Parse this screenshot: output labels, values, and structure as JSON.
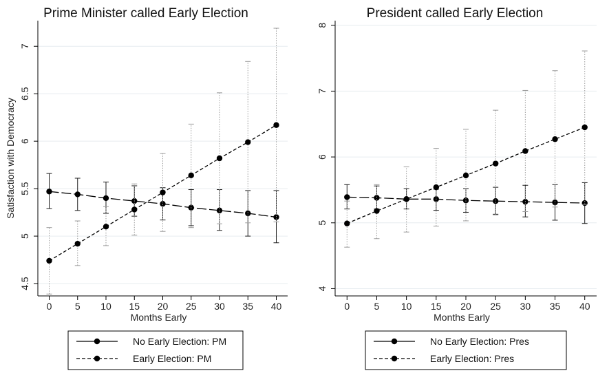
{
  "chart_data": [
    {
      "type": "line",
      "title": "Prime Minister  called Early Election",
      "xlabel": "Months Early",
      "ylabel": "Satisfaction with Democracy",
      "x": [
        0,
        5,
        10,
        15,
        20,
        25,
        30,
        35,
        40
      ],
      "xticks": [
        "0",
        "5",
        "10",
        "15",
        "20",
        "25",
        "30",
        "35",
        "40"
      ],
      "yticks": [
        "4.5",
        "5",
        "5.5",
        "6",
        "6.5",
        "7"
      ],
      "xlim": [
        -2,
        42
      ],
      "ylim": [
        4.37,
        7.27
      ],
      "grid": true,
      "series": [
        {
          "name": "No Early Election: PM",
          "style": "solid",
          "values": [
            5.47,
            5.44,
            5.4,
            5.37,
            5.34,
            5.3,
            5.27,
            5.24,
            5.2
          ],
          "ci_low": [
            5.29,
            5.27,
            5.24,
            5.21,
            5.17,
            5.11,
            5.06,
            5.0,
            4.93
          ],
          "ci_high": [
            5.66,
            5.61,
            5.57,
            5.53,
            5.51,
            5.49,
            5.49,
            5.48,
            5.48
          ]
        },
        {
          "name": "Early Election: PM",
          "style": "dashed",
          "values": [
            4.74,
            4.92,
            5.1,
            5.28,
            5.46,
            5.64,
            5.82,
            5.99,
            6.17
          ],
          "ci_low": [
            4.39,
            4.69,
            4.9,
            5.01,
            5.05,
            5.09,
            5.13,
            5.14,
            5.15
          ],
          "ci_high": [
            5.09,
            5.16,
            5.31,
            5.55,
            5.87,
            6.18,
            6.51,
            6.84,
            7.19
          ]
        }
      ],
      "legend": [
        "No Early Election: PM",
        "Early Election: PM"
      ]
    },
    {
      "type": "line",
      "title": "President  called Early Election",
      "xlabel": "Months Early",
      "ylabel": "",
      "x": [
        0,
        5,
        10,
        15,
        20,
        25,
        30,
        35,
        40
      ],
      "xticks": [
        "0",
        "5",
        "10",
        "15",
        "20",
        "25",
        "30",
        "35",
        "40"
      ],
      "yticks": [
        "4",
        "5",
        "6",
        "7",
        "8"
      ],
      "xlim": [
        -2,
        42
      ],
      "ylim": [
        3.89,
        8.07
      ],
      "grid": true,
      "series": [
        {
          "name": "No Early Election: Pres",
          "style": "solid",
          "values": [
            5.39,
            5.38,
            5.36,
            5.36,
            5.34,
            5.33,
            5.32,
            5.31,
            5.3
          ],
          "ci_low": [
            5.21,
            5.21,
            5.21,
            5.19,
            5.16,
            5.13,
            5.09,
            5.04,
            4.99
          ],
          "ci_high": [
            5.58,
            5.56,
            5.52,
            5.51,
            5.52,
            5.54,
            5.57,
            5.58,
            5.61
          ]
        },
        {
          "name": "Early Election: Pres",
          "style": "dashed",
          "values": [
            4.99,
            5.18,
            5.36,
            5.54,
            5.72,
            5.9,
            6.09,
            6.27,
            6.45
          ],
          "ci_low": [
            4.63,
            4.76,
            4.86,
            4.95,
            5.03,
            5.12,
            5.17,
            5.24,
            5.28
          ],
          "ci_high": [
            5.33,
            5.58,
            5.85,
            6.13,
            6.42,
            6.71,
            7.01,
            7.31,
            7.61
          ]
        }
      ],
      "legend": [
        "No Early Election: Pres",
        "Early Election: Pres"
      ]
    }
  ]
}
